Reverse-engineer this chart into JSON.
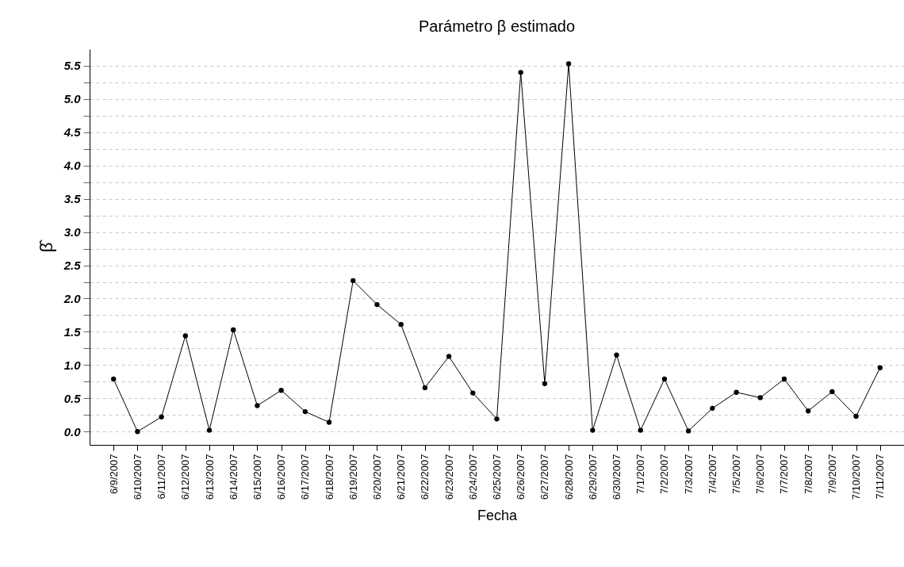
{
  "chart_data": {
    "type": "line",
    "title": "Parámetro β estimado",
    "xlabel": "Fecha",
    "ylabel": "β̂",
    "categories": [
      "6/9/2007",
      "6/10/2007",
      "6/11/2007",
      "6/12/2007",
      "6/13/2007",
      "6/14/2007",
      "6/15/2007",
      "6/16/2007",
      "6/17/2007",
      "6/18/2007",
      "6/19/2007",
      "6/20/2007",
      "6/21/2007",
      "6/22/2007",
      "6/23/2007",
      "6/24/2007",
      "6/25/2007",
      "6/26/2007",
      "6/27/2007",
      "6/28/2007",
      "6/29/2007",
      "6/30/2007",
      "7/1/2007",
      "7/2/2007",
      "7/3/2007",
      "7/4/2007",
      "7/5/2007",
      "7/6/2007",
      "7/7/2007",
      "7/8/2007",
      "7/9/2007",
      "7/10/2007",
      "7/11/2007"
    ],
    "series": [
      {
        "color": "#000000",
        "values": [
          0.79,
          0.0,
          0.22,
          1.44,
          0.02,
          1.53,
          0.39,
          0.62,
          0.3,
          0.14,
          2.27,
          1.91,
          1.61,
          0.66,
          1.13,
          0.58,
          0.19,
          5.4,
          0.72,
          5.53,
          0.02,
          1.15,
          0.02,
          0.79,
          0.01,
          0.35,
          0.59,
          0.51,
          0.79,
          0.31,
          0.6,
          0.23,
          0.96
        ]
      }
    ],
    "ylim": [
      -0.2,
      5.75
    ],
    "yticks": [
      {
        "value": 0,
        "label": "0.0"
      },
      {
        "value": 0.25,
        "label": null
      },
      {
        "value": 0.5,
        "label": "0.5"
      },
      {
        "value": 0.75,
        "label": null
      },
      {
        "value": 1,
        "label": "1.0"
      },
      {
        "value": 1.25,
        "label": null
      },
      {
        "value": 1.5,
        "label": "1.5"
      },
      {
        "value": 1.75,
        "label": null
      },
      {
        "value": 2,
        "label": "2.0"
      },
      {
        "value": 2.25,
        "label": null
      },
      {
        "value": 2.5,
        "label": "2.5"
      },
      {
        "value": 2.75,
        "label": null
      },
      {
        "value": 3,
        "label": "3.0"
      },
      {
        "value": 3.25,
        "label": null
      },
      {
        "value": 3.5,
        "label": "3.5"
      },
      {
        "value": 3.75,
        "label": null
      },
      {
        "value": 4,
        "label": "4.0"
      },
      {
        "value": 4.25,
        "label": null
      },
      {
        "value": 4.5,
        "label": "4.5"
      },
      {
        "value": 4.75,
        "label": null
      },
      {
        "value": 5,
        "label": "5.0"
      },
      {
        "value": 5.25,
        "label": null
      },
      {
        "value": 5.5,
        "label": "5.5"
      }
    ],
    "grid": "y",
    "marker": "circle",
    "line_style": "solid",
    "legend": false
  }
}
